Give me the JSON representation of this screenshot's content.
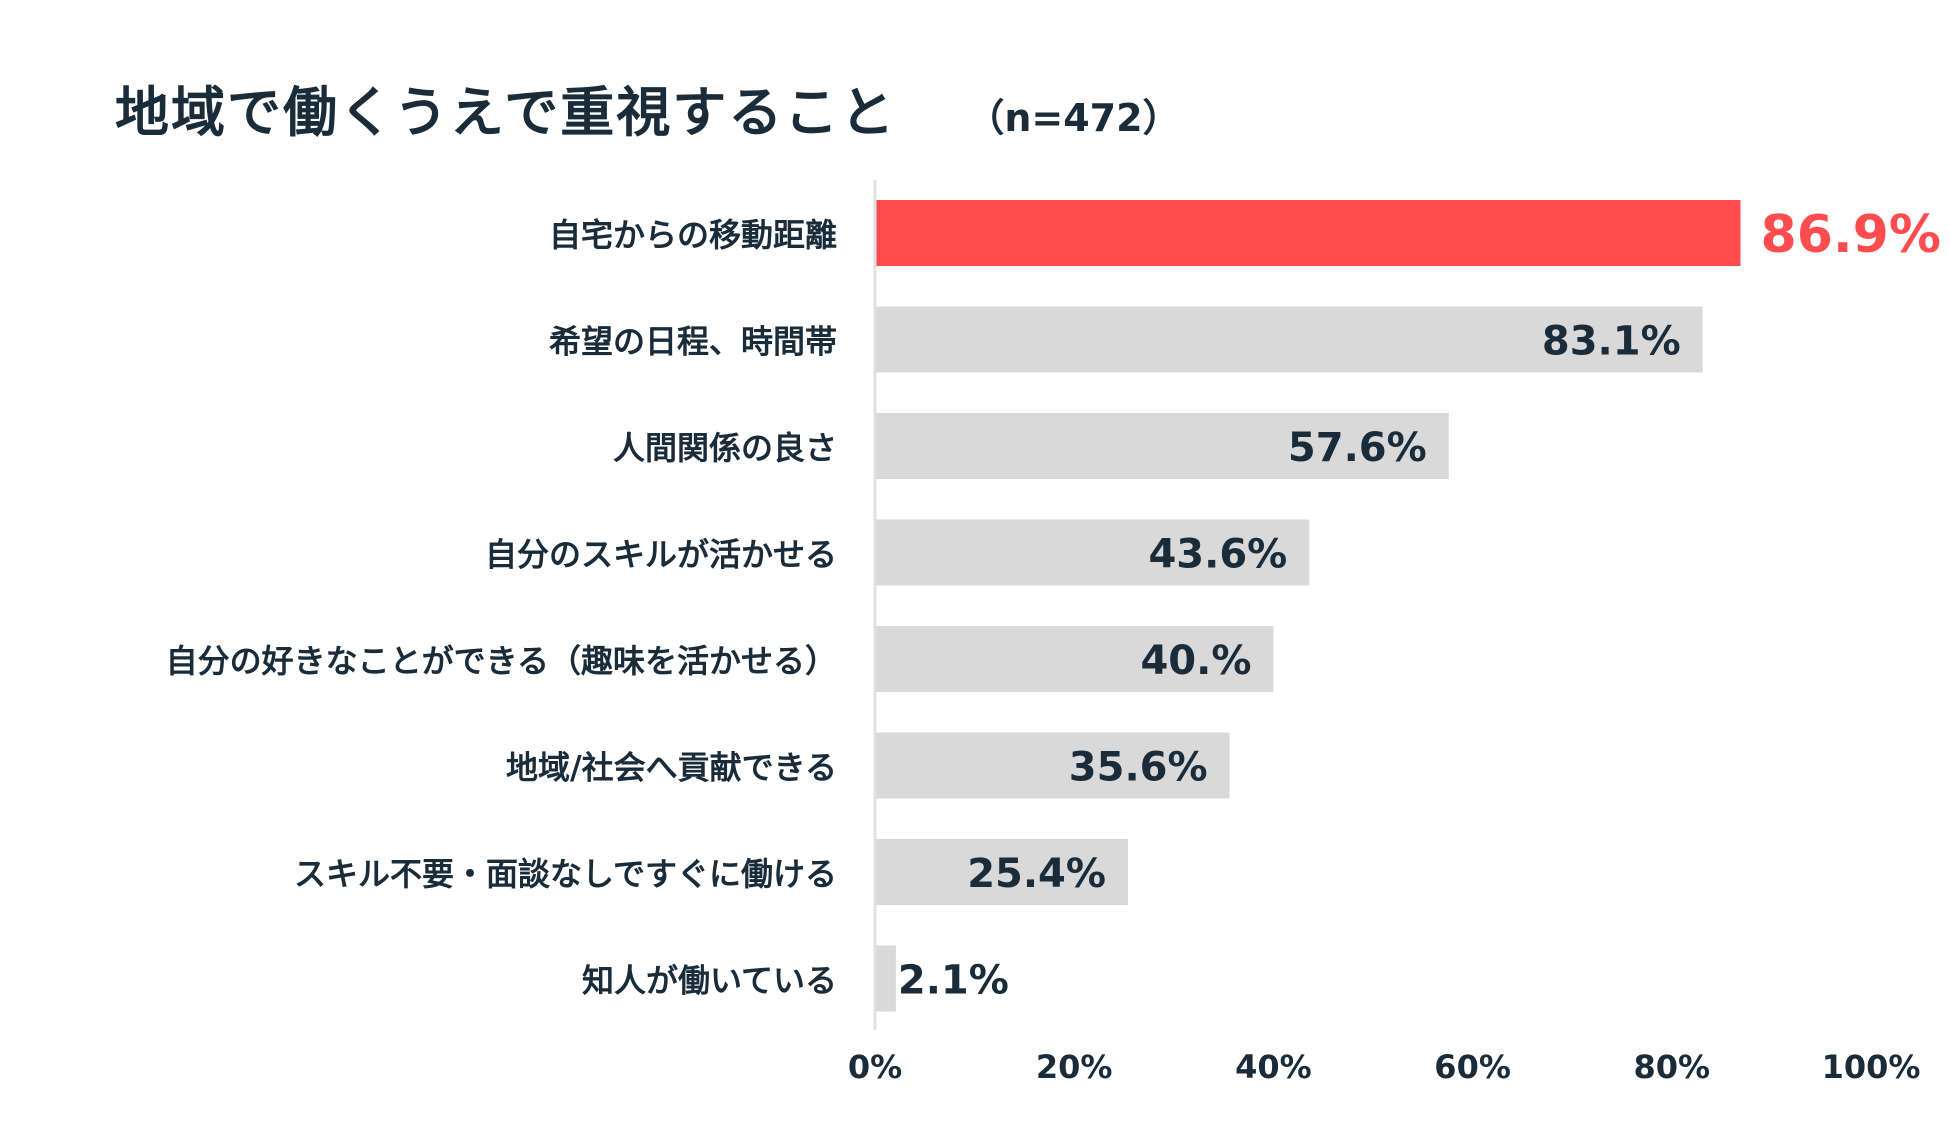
{
  "header": {
    "title": "地域で働くうえで重視すること",
    "subtitle": "（n=472）"
  },
  "colors": {
    "highlight": "#ff4d4f",
    "bar": "#d9d9d9",
    "text": "#1a2b3a",
    "axis": "#e0e0e0"
  },
  "chart_data": {
    "type": "bar",
    "orientation": "horizontal",
    "title": "地域で働くうえで重視すること",
    "subtitle": "（n=472）",
    "categories": [
      "自宅からの移動距離",
      "希望の日程、時間帯",
      "人間関係の良さ",
      "自分のスキルが活かせる",
      "自分の好きなことができる（趣味を活かせる）",
      "地域/社会へ貢献できる",
      "スキル不要・面談なしですぐに働ける",
      "知人が働いている"
    ],
    "values": [
      86.9,
      83.1,
      57.6,
      43.6,
      40.0,
      35.6,
      25.4,
      2.1
    ],
    "value_labels": [
      "86.9%",
      "83.1%",
      "57.6%",
      "43.6%",
      "40.%",
      "35.6%",
      "25.4%",
      "2.1%"
    ],
    "highlight_index": 0,
    "xlim": [
      0,
      100
    ],
    "x_ticks": [
      0,
      20,
      40,
      60,
      80,
      100
    ],
    "x_tick_labels": [
      "0%",
      "20%",
      "40%",
      "60%",
      "80%",
      "100%"
    ],
    "xlabel": "",
    "ylabel": ""
  }
}
